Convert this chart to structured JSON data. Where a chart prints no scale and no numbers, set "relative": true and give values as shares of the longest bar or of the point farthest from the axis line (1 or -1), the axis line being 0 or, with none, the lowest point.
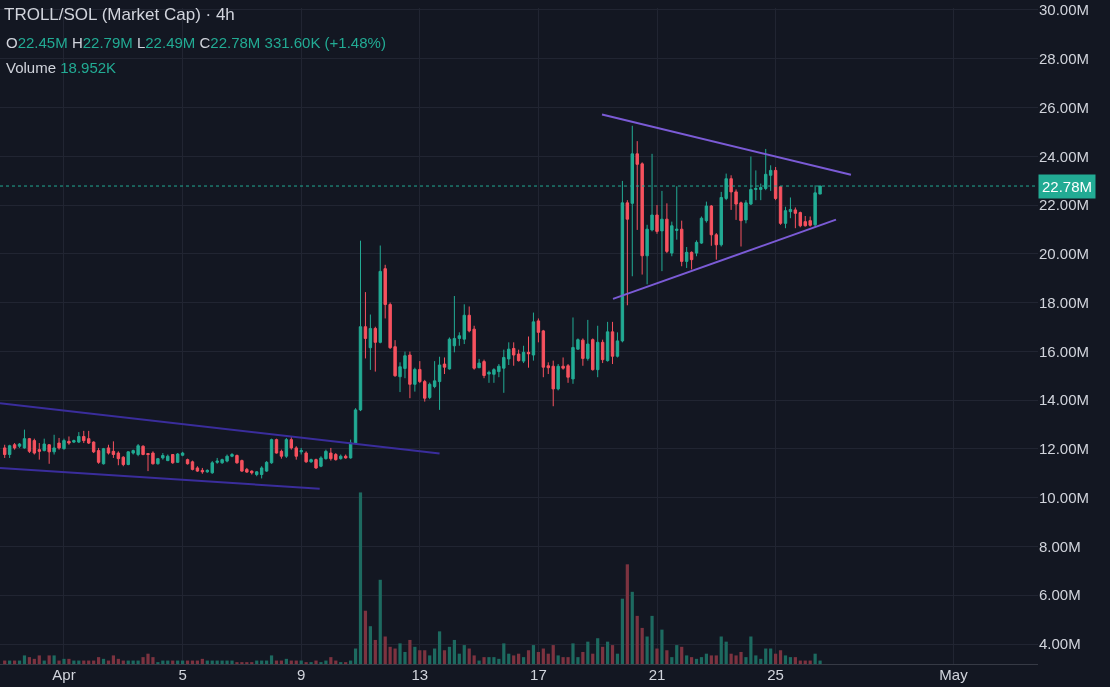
{
  "chart_data": [
    {
      "type": "candlestick",
      "title": "TROLL/SOL (Market Cap) · 4h",
      "annotations": [
        "O22.45M H22.79M L22.49M C22.78M 331.60K (+1.48%)"
      ],
      "x": [
        "--03-30T00:00",
        "--03-30T04:00",
        "--03-30T08:00",
        "--03-30T12:00",
        "--03-30T16:00",
        "--03-30T20:00",
        "--03-31T00:00",
        "--03-31T04:00",
        "--03-31T08:00",
        "--03-31T12:00",
        "--03-31T16:00",
        "--03-31T20:00",
        "--04-01T00:00",
        "--04-01T04:00",
        "--04-01T08:00",
        "--04-01T12:00",
        "--04-01T16:00",
        "--04-01T20:00",
        "--04-02T00:00",
        "--04-02T04:00",
        "--04-02T08:00",
        "--04-02T12:00",
        "--04-02T16:00",
        "--04-02T20:00",
        "--04-03T00:00",
        "--04-03T04:00",
        "--04-03T08:00",
        "--04-03T12:00",
        "--04-03T16:00",
        "--04-03T20:00",
        "--04-04T00:00",
        "--04-04T04:00",
        "--04-04T08:00",
        "--04-04T12:00",
        "--04-04T16:00",
        "--04-04T20:00",
        "--04-05T00:00",
        "--04-05T04:00",
        "--04-05T08:00",
        "--04-05T12:00",
        "--04-05T16:00",
        "--04-05T20:00",
        "--04-06T00:00",
        "--04-06T04:00",
        "--04-06T08:00",
        "--04-06T12:00",
        "--04-06T16:00",
        "--04-06T20:00",
        "--04-07T00:00",
        "--04-07T04:00",
        "--04-07T08:00",
        "--04-07T12:00",
        "--04-07T16:00",
        "--04-07T20:00",
        "--04-08T00:00",
        "--04-08T04:00",
        "--04-08T08:00",
        "--04-08T12:00",
        "--04-08T16:00",
        "--04-08T20:00",
        "--04-09T00:00",
        "--04-09T04:00",
        "--04-09T08:00",
        "--04-09T12:00",
        "--04-09T16:00",
        "--04-09T20:00",
        "--04-10T00:00",
        "--04-10T04:00",
        "--04-10T08:00",
        "--04-10T12:00",
        "--04-10T16:00",
        "--04-10T20:00",
        "--04-11T00:00",
        "--04-11T04:00",
        "--04-11T08:00",
        "--04-11T12:00",
        "--04-11T16:00",
        "--04-11T20:00",
        "--04-12T00:00",
        "--04-12T04:00",
        "--04-12T08:00",
        "--04-12T12:00",
        "--04-12T16:00",
        "--04-12T20:00",
        "--04-13T00:00",
        "--04-13T04:00",
        "--04-13T08:00",
        "--04-13T12:00",
        "--04-13T16:00",
        "--04-13T20:00",
        "--04-14T00:00",
        "--04-14T04:00",
        "--04-14T08:00",
        "--04-14T12:00",
        "--04-14T16:00",
        "--04-14T20:00",
        "--04-15T00:00",
        "--04-15T04:00",
        "--04-15T08:00",
        "--04-15T12:00",
        "--04-15T16:00",
        "--04-15T20:00",
        "--04-16T00:00",
        "--04-16T04:00",
        "--04-16T08:00",
        "--04-16T12:00",
        "--04-16T16:00",
        "--04-16T20:00",
        "--04-17T00:00",
        "--04-17T04:00",
        "--04-17T08:00",
        "--04-17T12:00",
        "--04-17T16:00",
        "--04-17T20:00",
        "--04-18T00:00",
        "--04-18T04:00",
        "--04-18T08:00",
        "--04-18T12:00",
        "--04-18T16:00",
        "--04-18T20:00",
        "--04-19T00:00",
        "--04-19T04:00",
        "--04-19T08:00",
        "--04-19T12:00",
        "--04-19T16:00",
        "--04-19T20:00",
        "--04-20T00:00",
        "--04-20T04:00",
        "--04-20T08:00",
        "--04-20T12:00",
        "--04-20T16:00",
        "--04-20T20:00",
        "--04-21T00:00",
        "--04-21T04:00",
        "--04-21T08:00",
        "--04-21T12:00",
        "--04-21T16:00",
        "--04-21T20:00",
        "--04-22T00:00",
        "--04-22T04:00",
        "--04-22T08:00",
        "--04-22T12:00",
        "--04-22T16:00",
        "--04-22T20:00",
        "--04-23T00:00",
        "--04-23T04:00",
        "--04-23T08:00",
        "--04-23T12:00",
        "--04-23T16:00",
        "--04-23T20:00",
        "--04-24T00:00",
        "--04-24T04:00",
        "--04-24T08:00",
        "--04-24T12:00",
        "--04-24T16:00",
        "--04-24T20:00",
        "--04-25T00:00",
        "--04-25T04:00",
        "--04-25T08:00",
        "--04-25T12:00",
        "--04-25T16:00",
        "--04-25T20:00",
        "--04-26T00:00",
        "--04-26T04:00",
        "--04-26T08:00",
        "--04-26T12:00"
      ],
      "ohlc": [
        [
          12.04,
          12.17,
          11.63,
          11.77
        ],
        [
          11.77,
          12.17,
          11.63,
          12.13
        ],
        [
          12.17,
          12.24,
          11.97,
          12.04
        ],
        [
          12.11,
          12.24,
          12.04,
          12.2
        ],
        [
          12.04,
          12.79,
          12.01,
          12.42
        ],
        [
          12.42,
          12.45,
          11.83,
          11.9
        ],
        [
          12.34,
          12.42,
          11.77,
          11.83
        ],
        [
          11.97,
          12.24,
          11.56,
          11.9
        ],
        [
          11.93,
          12.42,
          11.9,
          12.2
        ],
        [
          12.17,
          12.2,
          11.39,
          11.88
        ],
        [
          11.88,
          12.58,
          11.77,
          12.04
        ],
        [
          12.24,
          12.45,
          11.97,
          12.04
        ],
        [
          12.01,
          12.42,
          11.97,
          12.34
        ],
        [
          12.31,
          12.51,
          12.17,
          12.24
        ],
        [
          12.28,
          12.38,
          12.24,
          12.34
        ],
        [
          12.28,
          12.69,
          12.24,
          12.51
        ],
        [
          12.51,
          12.74,
          12.24,
          12.34
        ],
        [
          12.42,
          12.74,
          12.2,
          12.24
        ],
        [
          12.28,
          12.31,
          11.83,
          11.88
        ],
        [
          11.93,
          12.04,
          11.39,
          11.45
        ],
        [
          11.39,
          12.04,
          11.36,
          12.01
        ],
        [
          12.04,
          12.17,
          11.77,
          11.83
        ],
        [
          11.9,
          12.31,
          11.63,
          11.77
        ],
        [
          11.83,
          11.9,
          11.33,
          11.6
        ],
        [
          11.66,
          11.7,
          11.29,
          11.36
        ],
        [
          11.36,
          11.9,
          11.33,
          11.88
        ],
        [
          11.83,
          11.97,
          11.77,
          11.93
        ],
        [
          11.77,
          12.2,
          11.7,
          12.13
        ],
        [
          12.11,
          12.15,
          11.74,
          11.77
        ],
        [
          11.81,
          11.83,
          11.09,
          11.77
        ],
        [
          11.83,
          11.9,
          11.36,
          11.39
        ],
        [
          11.39,
          11.63,
          11.36,
          11.6
        ],
        [
          11.63,
          11.83,
          11.56,
          11.73
        ],
        [
          11.52,
          11.77,
          11.5,
          11.7
        ],
        [
          11.77,
          11.79,
          11.39,
          11.43
        ],
        [
          11.45,
          11.83,
          11.43,
          11.79
        ],
        [
          11.74,
          11.88,
          11.7,
          11.83
        ],
        [
          11.56,
          11.6,
          11.36,
          11.39
        ],
        [
          11.47,
          11.52,
          11.12,
          11.16
        ],
        [
          11.22,
          11.29,
          11.06,
          11.09
        ],
        [
          11.12,
          11.22,
          10.98,
          11.06
        ],
        [
          11.06,
          11.16,
          11.02,
          11.12
        ],
        [
          11.02,
          11.5,
          10.98,
          11.43
        ],
        [
          11.45,
          11.63,
          11.39,
          11.5
        ],
        [
          11.43,
          11.6,
          11.39,
          11.56
        ],
        [
          11.5,
          11.77,
          11.45,
          11.7
        ],
        [
          11.7,
          11.83,
          11.66,
          11.77
        ],
        [
          11.73,
          11.77,
          11.39,
          11.43
        ],
        [
          11.52,
          11.56,
          11.06,
          11.09
        ],
        [
          11.16,
          11.22,
          11.02,
          11.05
        ],
        [
          11.09,
          11.12,
          10.95,
          11.02
        ],
        [
          10.95,
          11.09,
          10.88,
          11.06
        ],
        [
          10.95,
          11.29,
          10.79,
          11.22
        ],
        [
          11.09,
          11.5,
          11.06,
          11.45
        ],
        [
          11.43,
          12.42,
          11.39,
          12.38
        ],
        [
          12.38,
          12.42,
          11.81,
          11.83
        ],
        [
          11.9,
          11.97,
          11.6,
          11.7
        ],
        [
          11.7,
          12.45,
          11.63,
          12.38
        ],
        [
          12.38,
          12.51,
          11.97,
          12.04
        ],
        [
          12.04,
          12.11,
          11.56,
          11.7
        ],
        [
          11.88,
          12.04,
          11.77,
          11.93
        ],
        [
          11.83,
          11.9,
          11.43,
          11.47
        ],
        [
          11.47,
          11.6,
          11.43,
          11.56
        ],
        [
          11.56,
          11.6,
          11.18,
          11.22
        ],
        [
          11.29,
          11.7,
          11.25,
          11.63
        ],
        [
          11.6,
          11.97,
          11.56,
          11.9
        ],
        [
          11.83,
          12.04,
          11.52,
          11.6
        ],
        [
          11.77,
          11.83,
          11.52,
          11.56
        ],
        [
          11.6,
          11.77,
          11.56,
          11.7
        ],
        [
          11.7,
          11.77,
          11.6,
          11.63
        ],
        [
          11.63,
          12.38,
          11.6,
          12.24
        ],
        [
          12.24,
          13.67,
          12.2,
          13.6
        ],
        [
          13.6,
          20.54,
          13.55,
          17.01
        ],
        [
          17.01,
          18.43,
          15.71,
          16.53
        ],
        [
          16.15,
          17.51,
          15.24,
          16.94
        ],
        [
          16.94,
          17.01,
          15.17,
          16.37
        ],
        [
          16.37,
          20.34,
          16.33,
          19.28
        ],
        [
          19.39,
          19.55,
          17.35,
          17.92
        ],
        [
          17.92,
          18,
          16.1,
          16.15
        ],
        [
          16.19,
          16.46,
          14.96,
          15
        ],
        [
          14.96,
          15.55,
          14.33,
          15.37
        ],
        [
          15.3,
          15.99,
          14.9,
          15.82
        ],
        [
          15.85,
          15.99,
          14.08,
          14.65
        ],
        [
          14.65,
          15.33,
          14.35,
          15.26
        ],
        [
          15.26,
          15.6,
          14.7,
          14.76
        ],
        [
          14.76,
          14.83,
          13.94,
          14.08
        ],
        [
          14.11,
          14.72,
          14.04,
          14.65
        ],
        [
          14.56,
          15.6,
          14.49,
          14.79
        ],
        [
          14.76,
          15.78,
          13.6,
          15.44
        ],
        [
          15.48,
          15.75,
          15.07,
          15.35
        ],
        [
          15.28,
          16.57,
          15.25,
          16.5
        ],
        [
          16.23,
          18.27,
          15.96,
          16.53
        ],
        [
          16.53,
          16.78,
          16.23,
          16.64
        ],
        [
          16.5,
          17.93,
          16.3,
          17.48
        ],
        [
          17.48,
          17.84,
          16.78,
          16.84
        ],
        [
          16.91,
          17.05,
          15.25,
          15.31
        ],
        [
          15.33,
          15.69,
          15.31,
          15.52
        ],
        [
          15.58,
          15.66,
          14.9,
          15.01
        ],
        [
          15.07,
          15.21,
          14.71,
          15.14
        ],
        [
          15.06,
          15.31,
          14.71,
          15.25
        ],
        [
          15.17,
          15.48,
          14.94,
          15.39
        ],
        [
          15.31,
          16.07,
          14.3,
          15.75
        ],
        [
          15.69,
          16.37,
          15.44,
          16.09
        ],
        [
          16.12,
          16.37,
          15.41,
          15.85
        ],
        [
          15.89,
          16.07,
          15.58,
          15.62
        ],
        [
          15.6,
          16.23,
          15.52,
          15.96
        ],
        [
          15.96,
          16.61,
          15.33,
          15.9
        ],
        [
          15.85,
          17.59,
          15.62,
          17.21
        ],
        [
          17.25,
          17.35,
          16.37,
          16.78
        ],
        [
          16.84,
          16.88,
          14.94,
          15.35
        ],
        [
          15.41,
          15.55,
          15.07,
          15.33
        ],
        [
          15.39,
          15.62,
          13.75,
          14.46
        ],
        [
          14.46,
          15.48,
          14.4,
          15.39
        ],
        [
          15.39,
          15.75,
          15.25,
          15.31
        ],
        [
          15.41,
          15.48,
          14.71,
          14.94
        ],
        [
          14.87,
          17.39,
          14.67,
          16.16
        ],
        [
          16.09,
          16.53,
          16.07,
          16.48
        ],
        [
          16.46,
          16.53,
          15.41,
          15.71
        ],
        [
          15.71,
          17.29,
          15.62,
          16.3
        ],
        [
          16.48,
          16.53,
          15.21,
          15.25
        ],
        [
          15.25,
          17.05,
          14.94,
          16.37
        ],
        [
          16.37,
          16.48,
          15.52,
          15.66
        ],
        [
          15.62,
          17.21,
          15.58,
          16.8
        ],
        [
          16.8,
          17.21,
          15.48,
          15.8
        ],
        [
          15.8,
          16.78,
          15.75,
          16.43
        ],
        [
          16.43,
          22.99,
          16.37,
          22.09
        ],
        [
          22.09,
          22.2,
          17.89,
          21.42
        ],
        [
          22.07,
          25.25,
          19.08,
          24.1
        ],
        [
          24.1,
          24.62,
          20.98,
          23.67
        ],
        [
          23.69,
          23.75,
          19.15,
          19.92
        ],
        [
          19.92,
          21.19,
          18.75,
          21.01
        ],
        [
          20.98,
          24.1,
          20.92,
          21.59
        ],
        [
          21.59,
          22,
          20.82,
          20.92
        ],
        [
          20.94,
          22.58,
          19.29,
          21.42
        ],
        [
          21.42,
          22.07,
          20.03,
          20.1
        ],
        [
          20.03,
          21.32,
          19.9,
          21.15
        ],
        [
          20.96,
          22.77,
          20.58,
          21.01
        ],
        [
          21.01,
          21.36,
          19.49,
          19.69
        ],
        [
          19.69,
          20.28,
          19.42,
          20.06
        ],
        [
          20.06,
          20.1,
          19.36,
          19.76
        ],
        [
          20.03,
          20.55,
          19.9,
          20.47
        ],
        [
          20.44,
          21.53,
          20.41,
          21.46
        ],
        [
          21.36,
          22.14,
          21.28,
          21.96
        ],
        [
          21.96,
          22,
          20.33,
          20.78
        ],
        [
          20.78,
          20.85,
          19.76,
          20.37
        ],
        [
          20.37,
          22.54,
          20.3,
          22.31
        ],
        [
          22.27,
          23.29,
          22.2,
          23.08
        ],
        [
          23.08,
          23.22,
          21.8,
          22.54
        ],
        [
          22.54,
          22.64,
          21.39,
          22.04
        ],
        [
          22.09,
          22.14,
          20.3,
          21.36
        ],
        [
          21.39,
          22.2,
          21.25,
          22.09
        ],
        [
          22.04,
          23.99,
          22,
          22.64
        ],
        [
          22.64,
          23.42,
          22.2,
          22.68
        ],
        [
          22.64,
          22.88,
          22.2,
          22.72
        ],
        [
          22.68,
          24.3,
          22.61,
          23.26
        ],
        [
          23.22,
          23.63,
          22.58,
          23.42
        ],
        [
          23.42,
          23.56,
          22.2,
          22.27
        ],
        [
          22.75,
          22.77,
          21.19,
          21.25
        ],
        [
          21.25,
          21.93,
          21.05,
          21.77
        ],
        [
          21.73,
          22.31,
          21.46,
          21.82
        ],
        [
          21.8,
          21.9,
          21.05,
          21.66
        ],
        [
          21.69,
          21.73,
          21.09,
          21.15
        ],
        [
          21.32,
          21.55,
          21.12,
          21.15
        ],
        [
          21.36,
          21.53,
          21.12,
          21.17
        ],
        [
          21.19,
          22.81,
          21.09,
          22.5
        ],
        [
          22.45,
          22.79,
          22.45,
          22.78
        ]
      ],
      "colors": [
        "#f7525f",
        "#22ab94",
        "#f7525f",
        "#22ab94",
        "#22ab94",
        "#f7525f",
        "#f7525f",
        "#f7525f",
        "#22ab94",
        "#f7525f",
        "#22ab94",
        "#f7525f",
        "#22ab94",
        "#f7525f",
        "#22ab94",
        "#22ab94",
        "#f7525f",
        "#f7525f",
        "#f7525f",
        "#f7525f",
        "#22ab94",
        "#f7525f",
        "#f7525f",
        "#f7525f",
        "#f7525f",
        "#22ab94",
        "#22ab94",
        "#22ab94",
        "#f7525f",
        "#f7525f",
        "#f7525f",
        "#22ab94",
        "#22ab94",
        "#22ab94",
        "#f7525f",
        "#22ab94",
        "#22ab94",
        "#f7525f",
        "#f7525f",
        "#f7525f",
        "#f7525f",
        "#22ab94",
        "#22ab94",
        "#22ab94",
        "#22ab94",
        "#22ab94",
        "#22ab94",
        "#f7525f",
        "#f7525f",
        "#f7525f",
        "#f7525f",
        "#22ab94",
        "#22ab94",
        "#22ab94",
        "#22ab94",
        "#f7525f",
        "#f7525f",
        "#22ab94",
        "#f7525f",
        "#f7525f",
        "#22ab94",
        "#f7525f",
        "#22ab94",
        "#f7525f",
        "#22ab94",
        "#22ab94",
        "#f7525f",
        "#f7525f",
        "#22ab94",
        "#f7525f",
        "#22ab94",
        "#22ab94",
        "#22ab94",
        "#f7525f",
        "#22ab94",
        "#f7525f",
        "#22ab94",
        "#f7525f",
        "#f7525f",
        "#f7525f",
        "#22ab94",
        "#22ab94",
        "#f7525f",
        "#22ab94",
        "#f7525f",
        "#f7525f",
        "#22ab94",
        "#22ab94",
        "#22ab94",
        "#f7525f",
        "#22ab94",
        "#22ab94",
        "#22ab94",
        "#22ab94",
        "#f7525f",
        "#f7525f",
        "#22ab94",
        "#f7525f",
        "#22ab94",
        "#22ab94",
        "#22ab94",
        "#22ab94",
        "#22ab94",
        "#f7525f",
        "#f7525f",
        "#22ab94",
        "#f7525f",
        "#22ab94",
        "#f7525f",
        "#f7525f",
        "#f7525f",
        "#f7525f",
        "#22ab94",
        "#f7525f",
        "#f7525f",
        "#22ab94",
        "#22ab94",
        "#f7525f",
        "#22ab94",
        "#f7525f",
        "#22ab94",
        "#f7525f",
        "#22ab94",
        "#f7525f",
        "#22ab94",
        "#22ab94",
        "#f7525f",
        "#22ab94",
        "#f7525f",
        "#f7525f",
        "#22ab94",
        "#22ab94",
        "#f7525f",
        "#22ab94",
        "#f7525f",
        "#22ab94",
        "#22ab94",
        "#f7525f",
        "#22ab94",
        "#f7525f",
        "#22ab94",
        "#22ab94",
        "#22ab94",
        "#f7525f",
        "#f7525f",
        "#22ab94",
        "#22ab94",
        "#f7525f",
        "#f7525f",
        "#f7525f",
        "#22ab94",
        "#22ab94",
        "#22ab94",
        "#22ab94",
        "#22ab94",
        "#22ab94",
        "#f7525f",
        "#f7525f",
        "#22ab94",
        "#22ab94",
        "#f7525f",
        "#f7525f",
        "#f7525f",
        "#f7525f",
        "#22ab94",
        "#22ab94"
      ],
      "series": [
        {
          "type": "line",
          "x": [
            "--03-29T20:12",
            "--04-13T16:00"
          ],
          "values": [
            13.87,
            11.81
          ],
          "color": "#3a2d9c"
        },
        {
          "type": "line",
          "x": [
            "--03-29T20:12",
            "--04-09T15:00"
          ],
          "values": [
            11.22,
            10.37
          ],
          "color": "#3a2d9c"
        },
        {
          "type": "line",
          "x": [
            "--04-19T03:30",
            "--04-27T13:00"
          ],
          "values": [
            25.71,
            23.24
          ],
          "color": "#7b5bd6"
        },
        {
          "type": "line",
          "x": [
            "--04-19T12:24",
            "--04-27T00:54"
          ],
          "values": [
            18.15,
            21.4
          ],
          "color": "#7b5bd6"
        }
      ],
      "xlim": [
        "--03-29T20:12",
        "--05-03T20:24"
      ],
      "xticks": [
        {
          "value": "--04-01",
          "label": "Apr"
        },
        {
          "value": "--04-05",
          "label": "5"
        },
        {
          "value": "--04-09",
          "label": "9"
        },
        {
          "value": "--04-13",
          "label": "13"
        },
        {
          "value": "--04-17",
          "label": "17"
        },
        {
          "value": "--04-21",
          "label": "21"
        },
        {
          "value": "--04-25",
          "label": "25"
        },
        {
          "value": "--05-01",
          "label": "May"
        }
      ],
      "ylim": [
        3.18,
        30.08
      ],
      "yticks": [
        {
          "value": 4,
          "label": "4.00M"
        },
        {
          "value": 6,
          "label": "6.00M"
        },
        {
          "value": 8,
          "label": "8.00M"
        },
        {
          "value": 10,
          "label": "10.00M"
        },
        {
          "value": 12,
          "label": "12.00M"
        },
        {
          "value": 14,
          "label": "14.00M"
        },
        {
          "value": 16,
          "label": "16.00M"
        },
        {
          "value": 18,
          "label": "18.00M"
        },
        {
          "value": 20,
          "label": "20.00M"
        },
        {
          "value": 22,
          "label": "22.00M"
        },
        {
          "value": 24,
          "label": "24.00M"
        },
        {
          "value": 26,
          "label": "26.00M"
        },
        {
          "value": 28,
          "label": "28.00M"
        },
        {
          "value": 30,
          "label": "30.00M"
        }
      ],
      "ref_lines": [
        {
          "axis": "y",
          "value": 22.78,
          "label": "22.78M",
          "color": "#22ab94",
          "line_style": "dotted"
        }
      ],
      "grid": true
    },
    {
      "type": "bar",
      "relative": true,
      "annotations": [
        "Volume 18.952K"
      ],
      "xlim": [
        "--03-29T20:12",
        "--05-03T20:24"
      ],
      "x": [
        "--03-30T00:00",
        "--03-30T04:00",
        "--03-30T08:00",
        "--03-30T12:00",
        "--03-30T16:00",
        "--03-30T20:00",
        "--03-31T00:00",
        "--03-31T04:00",
        "--03-31T08:00",
        "--03-31T12:00",
        "--03-31T16:00",
        "--03-31T20:00",
        "--04-01T00:00",
        "--04-01T04:00",
        "--04-01T08:00",
        "--04-01T12:00",
        "--04-01T16:00",
        "--04-01T20:00",
        "--04-02T00:00",
        "--04-02T04:00",
        "--04-02T08:00",
        "--04-02T12:00",
        "--04-02T16:00",
        "--04-02T20:00",
        "--04-03T00:00",
        "--04-03T04:00",
        "--04-03T08:00",
        "--04-03T12:00",
        "--04-03T16:00",
        "--04-03T20:00",
        "--04-04T00:00",
        "--04-04T04:00",
        "--04-04T08:00",
        "--04-04T12:00",
        "--04-04T16:00",
        "--04-04T20:00",
        "--04-05T00:00",
        "--04-05T04:00",
        "--04-05T08:00",
        "--04-05T12:00",
        "--04-05T16:00",
        "--04-05T20:00",
        "--04-06T00:00",
        "--04-06T04:00",
        "--04-06T08:00",
        "--04-06T12:00",
        "--04-06T16:00",
        "--04-06T20:00",
        "--04-07T00:00",
        "--04-07T04:00",
        "--04-07T08:00",
        "--04-07T12:00",
        "--04-07T16:00",
        "--04-07T20:00",
        "--04-08T00:00",
        "--04-08T04:00",
        "--04-08T08:00",
        "--04-08T12:00",
        "--04-08T16:00",
        "--04-08T20:00",
        "--04-09T00:00",
        "--04-09T04:00",
        "--04-09T08:00",
        "--04-09T12:00",
        "--04-09T16:00",
        "--04-09T20:00",
        "--04-10T00:00",
        "--04-10T04:00",
        "--04-10T08:00",
        "--04-10T12:00",
        "--04-10T16:00",
        "--04-10T20:00",
        "--04-11T00:00",
        "--04-11T04:00",
        "--04-11T08:00",
        "--04-11T12:00",
        "--04-11T16:00",
        "--04-11T20:00",
        "--04-12T00:00",
        "--04-12T04:00",
        "--04-12T08:00",
        "--04-12T12:00",
        "--04-12T16:00",
        "--04-12T20:00",
        "--04-13T00:00",
        "--04-13T04:00",
        "--04-13T08:00",
        "--04-13T12:00",
        "--04-13T16:00",
        "--04-13T20:00",
        "--04-14T00:00",
        "--04-14T04:00",
        "--04-14T08:00",
        "--04-14T12:00",
        "--04-14T16:00",
        "--04-14T20:00",
        "--04-15T00:00",
        "--04-15T04:00",
        "--04-15T08:00",
        "--04-15T12:00",
        "--04-15T16:00",
        "--04-15T20:00",
        "--04-16T00:00",
        "--04-16T04:00",
        "--04-16T08:00",
        "--04-16T12:00",
        "--04-16T16:00",
        "--04-16T20:00",
        "--04-17T00:00",
        "--04-17T04:00",
        "--04-17T08:00",
        "--04-17T12:00",
        "--04-17T16:00",
        "--04-17T20:00",
        "--04-18T00:00",
        "--04-18T04:00",
        "--04-18T08:00",
        "--04-18T12:00",
        "--04-18T16:00",
        "--04-18T20:00",
        "--04-19T00:00",
        "--04-19T04:00",
        "--04-19T08:00",
        "--04-19T12:00",
        "--04-19T16:00",
        "--04-19T20:00",
        "--04-20T00:00",
        "--04-20T04:00",
        "--04-20T08:00",
        "--04-20T12:00",
        "--04-20T16:00",
        "--04-20T20:00",
        "--04-21T00:00",
        "--04-21T04:00",
        "--04-21T08:00",
        "--04-21T12:00",
        "--04-21T16:00",
        "--04-21T20:00",
        "--04-22T00:00",
        "--04-22T04:00",
        "--04-22T08:00",
        "--04-22T12:00",
        "--04-22T16:00",
        "--04-22T20:00",
        "--04-23T00:00",
        "--04-23T04:00",
        "--04-23T08:00",
        "--04-23T12:00",
        "--04-23T16:00",
        "--04-23T20:00",
        "--04-24T00:00",
        "--04-24T04:00",
        "--04-24T08:00",
        "--04-24T12:00",
        "--04-24T16:00",
        "--04-24T20:00",
        "--04-25T00:00",
        "--04-25T04:00",
        "--04-25T08:00",
        "--04-25T12:00",
        "--04-25T16:00",
        "--04-25T20:00",
        "--04-26T00:00",
        "--04-26T04:00",
        "--04-26T08:00",
        "--04-26T12:00"
      ],
      "values": [
        0.02,
        0.02,
        0.02,
        0.02,
        0.05,
        0.04,
        0.03,
        0.05,
        0.02,
        0.05,
        0.05,
        0.02,
        0.03,
        0.03,
        0.02,
        0.02,
        0.02,
        0.02,
        0.02,
        0.04,
        0.03,
        0.02,
        0.05,
        0.03,
        0.02,
        0.02,
        0.02,
        0.02,
        0.04,
        0.06,
        0.04,
        0.01,
        0.02,
        0.02,
        0.02,
        0.02,
        0.02,
        0.02,
        0.02,
        0.02,
        0.03,
        0.02,
        0.02,
        0.02,
        0.02,
        0.02,
        0.02,
        0.01,
        0.01,
        0.01,
        0.01,
        0.02,
        0.02,
        0.02,
        0.05,
        0.02,
        0.02,
        0.03,
        0.02,
        0.02,
        0.02,
        0.01,
        0.01,
        0.02,
        0.01,
        0.02,
        0.04,
        0.02,
        0.01,
        0.01,
        0.02,
        0.09,
        1,
        0.31,
        0.22,
        0.14,
        0.49,
        0.16,
        0.1,
        0.09,
        0.12,
        0.07,
        0.14,
        0.1,
        0.08,
        0.08,
        0.05,
        0.09,
        0.19,
        0.08,
        0.1,
        0.14,
        0.06,
        0.11,
        0.09,
        0.05,
        0.02,
        0.04,
        0.04,
        0.04,
        0.03,
        0.12,
        0.06,
        0.05,
        0.06,
        0.04,
        0.08,
        0.11,
        0.07,
        0.09,
        0.06,
        0.11,
        0.05,
        0.04,
        0.04,
        0.12,
        0.04,
        0.07,
        0.13,
        0.06,
        0.15,
        0.1,
        0.13,
        0.11,
        0.06,
        0.38,
        0.58,
        0.42,
        0.28,
        0.21,
        0.16,
        0.28,
        0.09,
        0.2,
        0.08,
        0.04,
        0.11,
        0.1,
        0.05,
        0.04,
        0.03,
        0.04,
        0.06,
        0.05,
        0.05,
        0.16,
        0.13,
        0.06,
        0.05,
        0.07,
        0.04,
        0.16,
        0.05,
        0.03,
        0.09,
        0.09,
        0.06,
        0.08,
        0.05,
        0.04,
        0.04,
        0.02,
        0.02,
        0.02,
        0.06,
        0.02
      ],
      "colors": [
        "#7d3340",
        "#1d6a60",
        "#7d3340",
        "#1d6a60",
        "#1d6a60",
        "#7d3340",
        "#7d3340",
        "#7d3340",
        "#1d6a60",
        "#7d3340",
        "#1d6a60",
        "#7d3340",
        "#1d6a60",
        "#7d3340",
        "#1d6a60",
        "#1d6a60",
        "#7d3340",
        "#7d3340",
        "#7d3340",
        "#7d3340",
        "#1d6a60",
        "#7d3340",
        "#7d3340",
        "#7d3340",
        "#7d3340",
        "#1d6a60",
        "#1d6a60",
        "#1d6a60",
        "#7d3340",
        "#7d3340",
        "#7d3340",
        "#1d6a60",
        "#1d6a60",
        "#1d6a60",
        "#7d3340",
        "#1d6a60",
        "#1d6a60",
        "#7d3340",
        "#7d3340",
        "#7d3340",
        "#7d3340",
        "#1d6a60",
        "#1d6a60",
        "#1d6a60",
        "#1d6a60",
        "#1d6a60",
        "#1d6a60",
        "#7d3340",
        "#7d3340",
        "#7d3340",
        "#7d3340",
        "#1d6a60",
        "#1d6a60",
        "#1d6a60",
        "#1d6a60",
        "#7d3340",
        "#7d3340",
        "#1d6a60",
        "#7d3340",
        "#7d3340",
        "#1d6a60",
        "#7d3340",
        "#1d6a60",
        "#7d3340",
        "#1d6a60",
        "#1d6a60",
        "#7d3340",
        "#7d3340",
        "#1d6a60",
        "#7d3340",
        "#1d6a60",
        "#1d6a60",
        "#1d6a60",
        "#7d3340",
        "#1d6a60",
        "#7d3340",
        "#1d6a60",
        "#7d3340",
        "#7d3340",
        "#7d3340",
        "#1d6a60",
        "#1d6a60",
        "#7d3340",
        "#1d6a60",
        "#7d3340",
        "#7d3340",
        "#1d6a60",
        "#1d6a60",
        "#1d6a60",
        "#7d3340",
        "#1d6a60",
        "#1d6a60",
        "#1d6a60",
        "#1d6a60",
        "#7d3340",
        "#7d3340",
        "#1d6a60",
        "#7d3340",
        "#1d6a60",
        "#1d6a60",
        "#1d6a60",
        "#1d6a60",
        "#1d6a60",
        "#7d3340",
        "#7d3340",
        "#1d6a60",
        "#7d3340",
        "#1d6a60",
        "#7d3340",
        "#7d3340",
        "#7d3340",
        "#7d3340",
        "#1d6a60",
        "#7d3340",
        "#7d3340",
        "#1d6a60",
        "#1d6a60",
        "#7d3340",
        "#1d6a60",
        "#7d3340",
        "#1d6a60",
        "#7d3340",
        "#1d6a60",
        "#7d3340",
        "#1d6a60",
        "#1d6a60",
        "#7d3340",
        "#1d6a60",
        "#7d3340",
        "#7d3340",
        "#1d6a60",
        "#1d6a60",
        "#7d3340",
        "#1d6a60",
        "#7d3340",
        "#1d6a60",
        "#1d6a60",
        "#7d3340",
        "#1d6a60",
        "#7d3340",
        "#1d6a60",
        "#1d6a60",
        "#1d6a60",
        "#7d3340",
        "#7d3340",
        "#1d6a60",
        "#1d6a60",
        "#7d3340",
        "#7d3340",
        "#7d3340",
        "#1d6a60",
        "#1d6a60",
        "#1d6a60",
        "#1d6a60",
        "#1d6a60",
        "#1d6a60",
        "#7d3340",
        "#7d3340",
        "#1d6a60",
        "#1d6a60",
        "#7d3340",
        "#7d3340",
        "#7d3340",
        "#7d3340",
        "#1d6a60",
        "#1d6a60"
      ]
    }
  ]
}
